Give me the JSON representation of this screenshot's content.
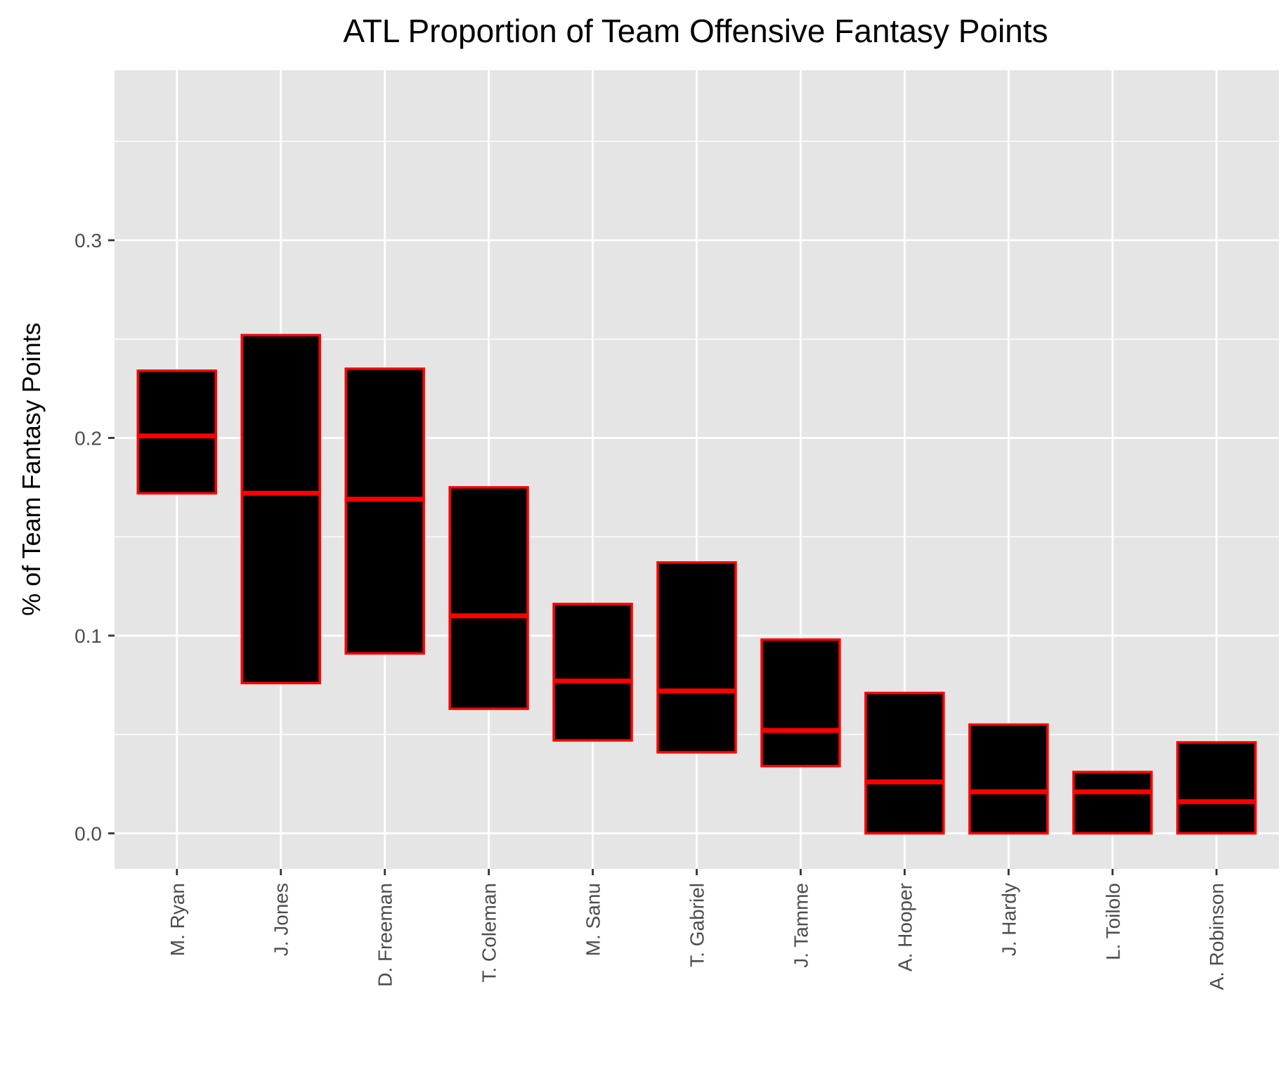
{
  "chart_data": {
    "type": "boxplot",
    "title": "ATL Proportion of Team Offensive Fantasy Points",
    "xlabel": "",
    "ylabel": "% of Team Fantasy Points",
    "ylim": [
      -0.018,
      0.386
    ],
    "yticks": [
      0.0,
      0.1,
      0.2,
      0.3
    ],
    "ytick_labels": [
      "0.0",
      "0.1",
      "0.2",
      "0.3"
    ],
    "x_tick_rotation": "vertical",
    "grid": true,
    "legend": "none",
    "colors": {
      "panel_background": "#e5e5e5",
      "grid_line": "#ffffff",
      "box_fill": "#000000",
      "box_outline": "#ff0000",
      "median_line": "#ff0000"
    },
    "categories": [
      "M. Ryan",
      "J. Jones",
      "D. Freeman",
      "T. Coleman",
      "M. Sanu",
      "T. Gabriel",
      "J. Tamme",
      "A. Hooper",
      "J. Hardy",
      "L. Toilolo",
      "A. Robinson"
    ],
    "boxes": [
      {
        "q1": 0.172,
        "median": 0.201,
        "q3": 0.234
      },
      {
        "q1": 0.076,
        "median": 0.172,
        "q3": 0.252
      },
      {
        "q1": 0.091,
        "median": 0.169,
        "q3": 0.235
      },
      {
        "q1": 0.063,
        "median": 0.11,
        "q3": 0.175
      },
      {
        "q1": 0.047,
        "median": 0.077,
        "q3": 0.116
      },
      {
        "q1": 0.041,
        "median": 0.072,
        "q3": 0.137
      },
      {
        "q1": 0.034,
        "median": 0.052,
        "q3": 0.098
      },
      {
        "q1": 0.0,
        "median": 0.026,
        "q3": 0.071
      },
      {
        "q1": 0.0,
        "median": 0.021,
        "q3": 0.055
      },
      {
        "q1": 0.0,
        "median": 0.021,
        "q3": 0.031
      },
      {
        "q1": 0.0,
        "median": 0.016,
        "q3": 0.046
      }
    ]
  }
}
